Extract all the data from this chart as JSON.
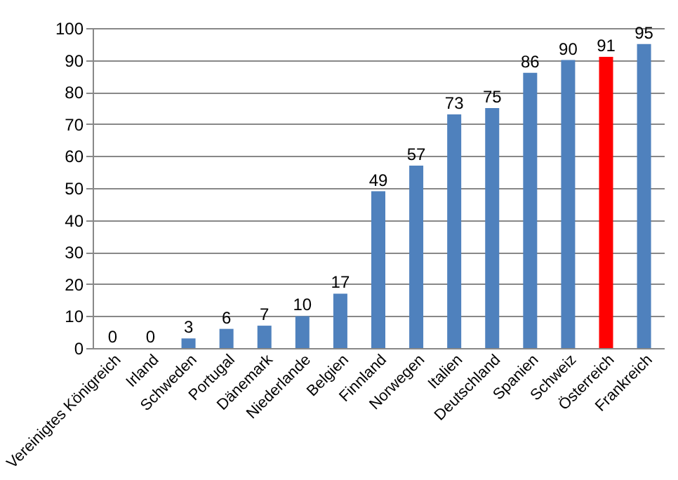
{
  "chart_data": {
    "type": "bar",
    "categories": [
      "Vereinigtes Königreich",
      "Irland",
      "Schweden",
      "Portugal",
      "Dänemark",
      "Niederlande",
      "Belgien",
      "Finnland",
      "Norwegen",
      "Italien",
      "Deutschland",
      "Spanien",
      "Schweiz",
      "Österreich",
      "Frankreich"
    ],
    "values": [
      0,
      0,
      3,
      6,
      7,
      10,
      17,
      49,
      57,
      73,
      75,
      86,
      90,
      91,
      95
    ],
    "colors": [
      "#4f81bd",
      "#4f81bd",
      "#4f81bd",
      "#4f81bd",
      "#4f81bd",
      "#4f81bd",
      "#4f81bd",
      "#4f81bd",
      "#4f81bd",
      "#4f81bd",
      "#4f81bd",
      "#4f81bd",
      "#4f81bd",
      "#ff0000",
      "#4f81bd"
    ],
    "ylim": [
      0,
      100
    ],
    "yticks": [
      0,
      10,
      20,
      30,
      40,
      50,
      60,
      70,
      80,
      90,
      100
    ],
    "grid": "y",
    "data_labels": true
  }
}
